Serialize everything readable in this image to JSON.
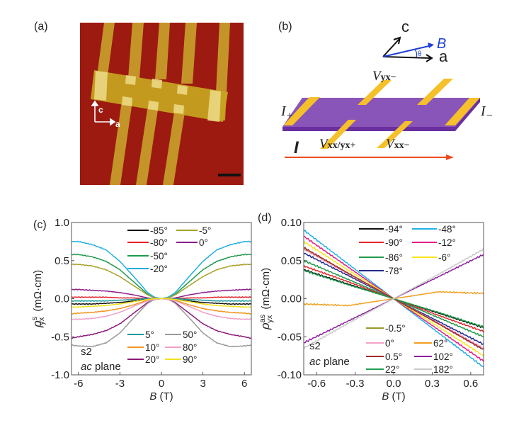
{
  "panels": {
    "a": {
      "label": "(a)",
      "axis_c": "c",
      "axis_a": "a"
    },
    "b": {
      "label": "(b)",
      "axis_c": "c",
      "axis_a": "a",
      "axis_B": "B",
      "theta": "θ",
      "i_plus": "I",
      "i_plus_sub": "+",
      "i_minus": "I",
      "i_minus_sub": "−",
      "v_yx_minus": "V",
      "v_yx_minus_sub": "yx−",
      "v_xx_yx_plus": "V",
      "v_xx_yx_plus_sub": "xx/yx+",
      "v_xx_minus": "V",
      "v_xx_minus_sub": "xx−",
      "current": "I"
    },
    "c": {
      "label": "(c)",
      "sample": "s2",
      "plane_italic": "ac",
      "plane": " plane"
    },
    "d": {
      "label": "(d)",
      "sample": "s2",
      "plane_italic": "ac",
      "plane": " plane"
    }
  },
  "colors": {
    "substrate": "#9c1a10",
    "contact": "#c9a22c",
    "crystal": "#8a55b8",
    "pad": "#f5c02a",
    "current_arrow": "#f04a1a",
    "b_field": "#1f3fd8"
  },
  "chart_data": [
    {
      "type": "line",
      "panel": "c",
      "xlabel": "B (T)",
      "ylabel": "ρ^s_yx (mΩ·cm)",
      "xlim": [
        -6.5,
        6.5
      ],
      "ylim": [
        -1.0,
        1.0
      ],
      "xticks": [
        -6,
        -3,
        0,
        3,
        6
      ],
      "yticks": [
        "1.0",
        "0.5",
        "0.0",
        "-0.5",
        "-1.0"
      ],
      "ytick_values": [
        1.0,
        0.5,
        0.0,
        -0.5,
        -1.0
      ],
      "x": [
        -6.5,
        -6,
        -5,
        -4,
        -3,
        -2,
        -1,
        -0.5,
        0,
        0.5,
        1,
        2,
        3,
        4,
        5,
        6,
        6.5
      ],
      "series": [
        {
          "name": "-85°",
          "color": "#111111",
          "values": [
            -0.07,
            -0.07,
            -0.07,
            -0.06,
            -0.05,
            -0.03,
            -0.01,
            0,
            0,
            0,
            -0.01,
            -0.03,
            -0.05,
            -0.06,
            -0.07,
            -0.07,
            -0.07
          ]
        },
        {
          "name": "-80°",
          "color": "#e8212a",
          "values": [
            0.02,
            0.02,
            0.02,
            0.02,
            0.01,
            0.01,
            0,
            0,
            0,
            0,
            0,
            0.01,
            0.01,
            0.02,
            0.02,
            0.02,
            0.02
          ]
        },
        {
          "name": "-50°",
          "color": "#1f9a4a",
          "values": [
            0.58,
            0.58,
            0.55,
            0.49,
            0.38,
            0.22,
            0.06,
            0.01,
            0,
            0.01,
            0.06,
            0.22,
            0.38,
            0.49,
            0.55,
            0.58,
            0.58
          ]
        },
        {
          "name": "-20°",
          "color": "#22aee0",
          "values": [
            0.75,
            0.75,
            0.71,
            0.64,
            0.49,
            0.29,
            0.08,
            0.02,
            0,
            0.02,
            0.08,
            0.29,
            0.49,
            0.64,
            0.71,
            0.75,
            0.75
          ]
        },
        {
          "name": "-5°",
          "color": "#a7a12a",
          "values": [
            0.45,
            0.45,
            0.43,
            0.38,
            0.29,
            0.17,
            0.05,
            0.01,
            0,
            0.01,
            0.05,
            0.17,
            0.29,
            0.38,
            0.43,
            0.45,
            0.45
          ]
        },
        {
          "name": "0°",
          "color": "#8c1e8c",
          "values": [
            0.12,
            0.12,
            0.11,
            0.1,
            0.08,
            0.05,
            0.01,
            0,
            0,
            0,
            0.01,
            0.05,
            0.08,
            0.1,
            0.11,
            0.12,
            0.12
          ]
        },
        {
          "name": "5°",
          "color": "#1a9a9a",
          "values": [
            -0.03,
            -0.03,
            -0.03,
            -0.03,
            -0.02,
            -0.01,
            0,
            0,
            0,
            0,
            0,
            -0.01,
            -0.02,
            -0.03,
            -0.03,
            -0.03,
            -0.03
          ]
        },
        {
          "name": "10°",
          "color": "#f0961e",
          "values": [
            -0.2,
            -0.19,
            -0.18,
            -0.16,
            -0.13,
            -0.08,
            -0.02,
            0,
            0,
            0,
            -0.02,
            -0.08,
            -0.13,
            -0.16,
            -0.18,
            -0.19,
            -0.2
          ]
        },
        {
          "name": "20°",
          "color": "#8a1a7a",
          "values": [
            -0.52,
            -0.5,
            -0.47,
            -0.42,
            -0.33,
            -0.19,
            -0.05,
            -0.01,
            0,
            -0.01,
            -0.05,
            -0.19,
            -0.33,
            -0.42,
            -0.47,
            -0.5,
            -0.52
          ]
        },
        {
          "name": "50°",
          "color": "#999999",
          "values": [
            -0.61,
            -0.62,
            -0.63,
            -0.58,
            -0.45,
            -0.25,
            -0.06,
            -0.01,
            0,
            -0.01,
            -0.06,
            -0.25,
            -0.45,
            -0.58,
            -0.63,
            -0.62,
            -0.61
          ]
        },
        {
          "name": "80°",
          "color": "#f0a0c8",
          "values": [
            -0.27,
            -0.27,
            -0.26,
            -0.23,
            -0.18,
            -0.1,
            -0.03,
            -0.01,
            0,
            -0.01,
            -0.03,
            -0.1,
            -0.18,
            -0.23,
            -0.26,
            -0.27,
            -0.27
          ]
        },
        {
          "name": "90°",
          "color": "#f2e21a",
          "values": [
            -0.11,
            -0.11,
            -0.1,
            -0.09,
            -0.07,
            -0.04,
            -0.01,
            0,
            0,
            0,
            -0.01,
            -0.04,
            -0.07,
            -0.09,
            -0.1,
            -0.11,
            -0.11
          ]
        }
      ],
      "legend_top": [
        "-85°",
        "-5°",
        "-80°",
        "0°",
        "-50°",
        "-20°"
      ],
      "legend_bottom": [
        "5°",
        "50°",
        "10°",
        "80°",
        "20°",
        "90°"
      ]
    },
    {
      "type": "line",
      "panel": "d",
      "xlabel": "B (T)",
      "ylabel": "ρ^as_yx (mΩ·cm)",
      "xlim": [
        -0.7,
        0.7
      ],
      "ylim": [
        -0.1,
        0.1
      ],
      "xticks": [
        "-0.6",
        "-0.3",
        "0.0",
        "0.3",
        "0.6"
      ],
      "xtick_values": [
        -0.6,
        -0.3,
        0.0,
        0.3,
        0.6
      ],
      "yticks": [
        "0.10",
        "0.05",
        "0.00",
        "-0.05",
        "-0.10"
      ],
      "ytick_values": [
        0.1,
        0.05,
        0.0,
        -0.05,
        -0.1
      ],
      "x": [
        -0.7,
        -0.35,
        0,
        0.35,
        0.7
      ],
      "series": [
        {
          "name": "-94°",
          "color": "#111111",
          "values": [
            0.038,
            0.019,
            0,
            -0.019,
            -0.038
          ]
        },
        {
          "name": "-90°",
          "color": "#e0282a",
          "values": [
            0.043,
            0.022,
            0,
            -0.022,
            -0.043
          ]
        },
        {
          "name": "-86°",
          "color": "#1f9a4a",
          "values": [
            0.05,
            0.025,
            0,
            -0.025,
            -0.05
          ]
        },
        {
          "name": "-78°",
          "color": "#1f2b8c",
          "values": [
            0.06,
            0.03,
            0,
            -0.03,
            -0.06
          ]
        },
        {
          "name": "-48°",
          "color": "#22b0e8",
          "values": [
            0.09,
            0.045,
            0,
            -0.045,
            -0.09
          ]
        },
        {
          "name": "-12°",
          "color": "#e0208a",
          "values": [
            0.082,
            0.041,
            0,
            -0.041,
            -0.082
          ]
        },
        {
          "name": "-6°",
          "color": "#f5e61e",
          "values": [
            0.075,
            0.037,
            0,
            -0.037,
            -0.075
          ]
        },
        {
          "name": "-0.5°",
          "color": "#9a9a2a",
          "values": [
            0.066,
            0.033,
            0,
            -0.033,
            -0.066
          ]
        },
        {
          "name": "0°",
          "color": "#f5a0c8",
          "values": [
            0.065,
            0.032,
            0,
            -0.032,
            -0.065
          ]
        },
        {
          "name": "0.5°",
          "color": "#a0282a",
          "values": [
            0.067,
            0.033,
            0,
            -0.033,
            -0.067
          ]
        },
        {
          "name": "22°",
          "color": "#20a050",
          "values": [
            0.037,
            0.018,
            0,
            -0.018,
            -0.037
          ]
        },
        {
          "name": "62°",
          "color": "#f0a020",
          "values": [
            -0.007,
            -0.009,
            0,
            0.009,
            0.007
          ]
        },
        {
          "name": "102°",
          "color": "#8a1e9a",
          "values": [
            -0.058,
            -0.029,
            0,
            0.029,
            0.058
          ]
        },
        {
          "name": "182°",
          "color": "#c8c8c8",
          "values": [
            -0.065,
            -0.032,
            0,
            0.032,
            0.065
          ]
        }
      ],
      "legend_top": [
        "-94°",
        "-48°",
        "-90°",
        "-12°",
        "-86°",
        "-6°",
        "-78°"
      ],
      "legend_bottom": [
        "-0.5°",
        "0°",
        "62°",
        "0.5°",
        "102°",
        "22°",
        "182°"
      ]
    }
  ]
}
